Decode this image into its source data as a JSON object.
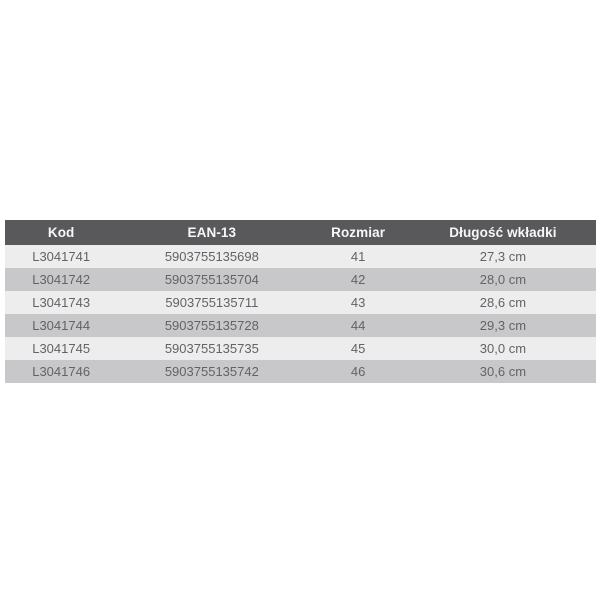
{
  "table": {
    "columns": [
      {
        "label": "Kod"
      },
      {
        "label": "EAN-13"
      },
      {
        "label": "Rozmiar"
      },
      {
        "label": "Długość wkładki"
      }
    ],
    "rows": [
      {
        "kod": "L3041741",
        "ean13": "5903755135698",
        "rozmiar": "41",
        "dlugosc": "27,3 cm"
      },
      {
        "kod": "L3041742",
        "ean13": "5903755135704",
        "rozmiar": "42",
        "dlugosc": "28,0 cm"
      },
      {
        "kod": "L3041743",
        "ean13": "5903755135711",
        "rozmiar": "43",
        "dlugosc": "28,6 cm"
      },
      {
        "kod": "L3041744",
        "ean13": "5903755135728",
        "rozmiar": "44",
        "dlugosc": "29,3 cm"
      },
      {
        "kod": "L3041745",
        "ean13": "5903755135735",
        "rozmiar": "45",
        "dlugosc": "30,0 cm"
      },
      {
        "kod": "L3041746",
        "ean13": "5903755135742",
        "rozmiar": "46",
        "dlugosc": "30,6 cm"
      }
    ],
    "colors": {
      "header_bg": "#59595b",
      "header_text": "#f7f7f8",
      "row_odd_bg": "#ededee",
      "row_even_bg": "#c8c8ca",
      "row_text": "#636365",
      "page_bg": "#ffffff"
    }
  }
}
